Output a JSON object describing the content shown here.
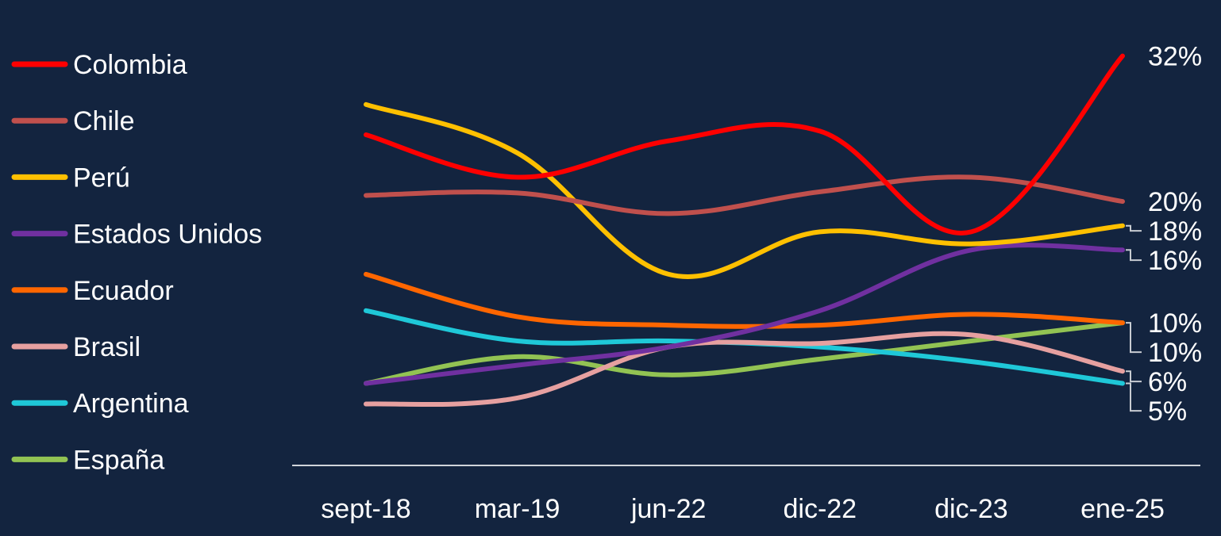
{
  "chart_data": {
    "type": "line",
    "title": "",
    "xlabel": "",
    "ylabel": "",
    "categories": [
      "sept-18",
      "mar-19",
      "jun-22",
      "dic-22",
      "dic-23",
      "ene-25"
    ],
    "ylim": [
      0,
      34
    ],
    "grid": false,
    "legend": "left",
    "series": [
      {
        "name": "Colombia",
        "color": "#ff0000",
        "values": [
          25.5,
          22.0,
          25.0,
          25.8,
          17.5,
          32.0
        ],
        "end_label": "32%"
      },
      {
        "name": "Chile",
        "color": "#c0504d",
        "values": [
          20.5,
          20.7,
          19.0,
          20.8,
          22.0,
          20.0
        ],
        "end_label": "20%"
      },
      {
        "name": "Perú",
        "color": "#ffc000",
        "values": [
          28.0,
          24.0,
          14.0,
          17.5,
          16.5,
          18.0
        ],
        "end_label": "18%"
      },
      {
        "name": "Estados Unidos",
        "color": "#7030a0",
        "values": [
          5.0,
          6.5,
          8.0,
          11.0,
          16.0,
          16.0
        ],
        "end_label": "16%"
      },
      {
        "name": "Ecuador",
        "color": "#ff6600",
        "values": [
          14.0,
          10.5,
          9.8,
          9.8,
          10.7,
          10.0
        ],
        "end_label": "10%"
      },
      {
        "name": "Brasil",
        "color": "#e6a0a0",
        "values": [
          3.3,
          3.8,
          8.0,
          8.3,
          9.0,
          6.0
        ],
        "end_label": "6%"
      },
      {
        "name": "Argentina",
        "color": "#1fc8d8",
        "values": [
          11.0,
          8.5,
          8.5,
          8.0,
          6.8,
          5.0
        ],
        "end_label": "5%"
      },
      {
        "name": "España",
        "color": "#92c353",
        "values": [
          5.0,
          7.2,
          5.7,
          7.0,
          8.5,
          10.0
        ],
        "end_label": "10%"
      }
    ]
  }
}
